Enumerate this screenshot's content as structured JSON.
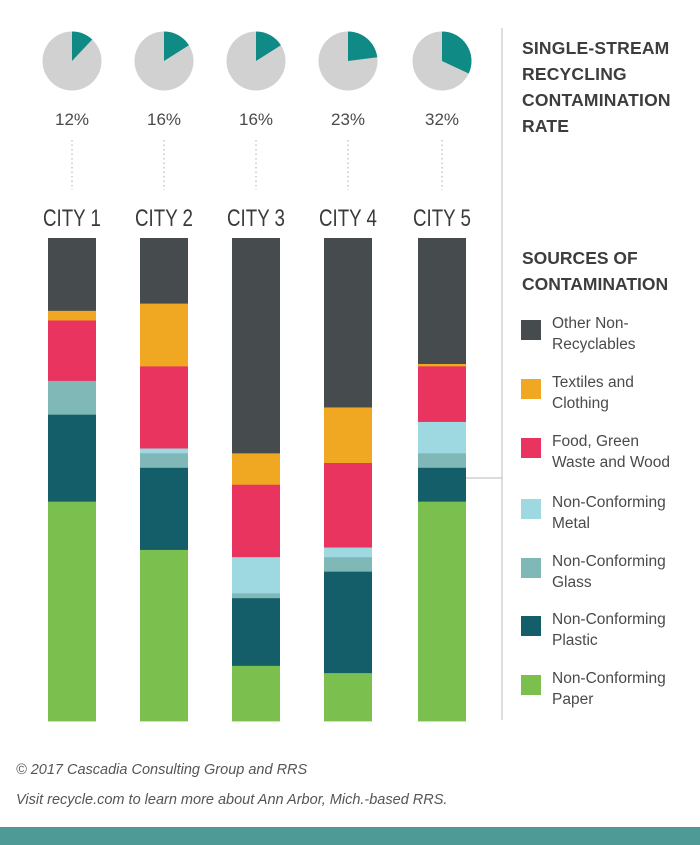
{
  "title": {
    "lines": [
      "SINGLE-STREAM",
      "RECYCLING",
      "CONTAMINATION",
      "RATE"
    ]
  },
  "legend": {
    "title_lines": [
      "SOURCES OF",
      "CONTAMINATION"
    ],
    "items": [
      {
        "lines": [
          "Other Non-",
          "Recyclables"
        ],
        "color": "#464b4e"
      },
      {
        "lines": [
          "Textiles and",
          "Clothing"
        ],
        "color": "#f0a823"
      },
      {
        "lines": [
          "Food, Green",
          "Waste and Wood"
        ],
        "color": "#e93460"
      },
      {
        "lines": [
          "Non-Conforming",
          "Metal"
        ],
        "color": "#9ed8e1"
      },
      {
        "lines": [
          "Non-Conforming",
          "Glass"
        ],
        "color": "#7fb8b6"
      },
      {
        "lines": [
          "Non-Conforming",
          "Plastic"
        ],
        "color": "#135e68"
      },
      {
        "lines": [
          "Non-Conforming",
          "Paper"
        ],
        "color": "#7bbf4f"
      }
    ]
  },
  "footer": {
    "copyright": "© 2017 Cascadia Consulting Group and RRS",
    "note": "Visit recycle.com to learn more about Ann Arbor, Mich.-based RRS."
  },
  "colors": {
    "pie_fill": "#0f8a85",
    "pie_bg": "#d1d1d1",
    "bottom_bar": "#4e9a97",
    "divider": "#c8c8c8"
  },
  "chart_data": [
    {
      "type": "pie",
      "categories": [
        "CITY 1",
        "CITY 2",
        "CITY 3",
        "CITY 4",
        "CITY 5"
      ],
      "values": [
        12,
        16,
        16,
        23,
        32
      ],
      "labels": [
        "12%",
        "16%",
        "16%",
        "23%",
        "32%"
      ],
      "unit": "%"
    },
    {
      "type": "bar",
      "stacked": true,
      "normalized_to": 100,
      "categories": [
        "CITY 1",
        "CITY 2",
        "CITY 3",
        "CITY 4",
        "CITY 5"
      ],
      "series": [
        {
          "name": "Non-Conforming Paper",
          "color": "#7bbf4f",
          "values": [
            45.5,
            35.5,
            11.5,
            10.0,
            45.5
          ]
        },
        {
          "name": "Non-Conforming Plastic",
          "color": "#135e68",
          "values": [
            18.0,
            17.0,
            14.0,
            21.0,
            7.0
          ]
        },
        {
          "name": "Non-Conforming Glass",
          "color": "#7fb8b6",
          "values": [
            7.0,
            3.0,
            1.0,
            3.0,
            3.0
          ]
        },
        {
          "name": "Non-Conforming Metal",
          "color": "#9ed8e1",
          "values": [
            0.0,
            1.0,
            7.5,
            2.0,
            6.5
          ]
        },
        {
          "name": "Food, Green Waste and Wood",
          "color": "#e93460",
          "values": [
            12.5,
            17.0,
            15.0,
            17.5,
            11.5
          ]
        },
        {
          "name": "Textiles and Clothing",
          "color": "#f0a823",
          "values": [
            2.0,
            13.0,
            6.5,
            11.5,
            0.5
          ]
        },
        {
          "name": "Other Non-Recyclables",
          "color": "#464b4e",
          "values": [
            15.0,
            13.5,
            44.5,
            35.0,
            26.0
          ]
        }
      ]
    }
  ]
}
